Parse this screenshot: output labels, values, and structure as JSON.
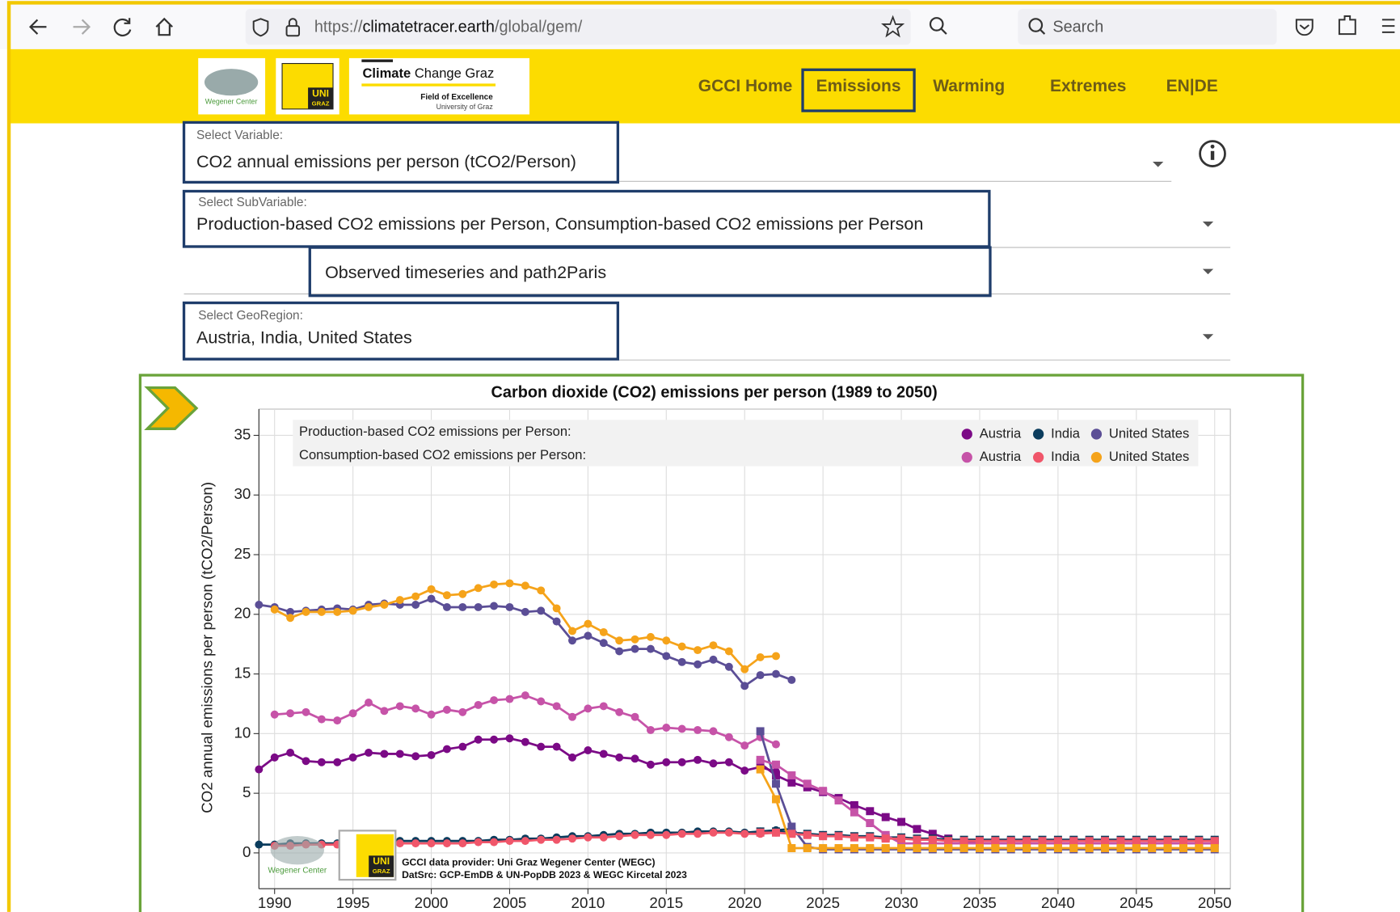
{
  "browser": {
    "url_scheme": "https://",
    "url_host": "climatetracer.earth",
    "url_path": "/global/gem/",
    "search": "Search"
  },
  "logos": {
    "wegener": "Wegener Center",
    "uni": "UNI",
    "graz": "GRAZ",
    "ccg_bold": "Climate",
    "ccg": "Change Graz",
    "foe": "Field of Excellence",
    "uog": "University of Graz"
  },
  "nav": [
    "GCCI Home",
    "Emissions",
    "Warming",
    "Extremes",
    "EN|DE"
  ],
  "selects": [
    {
      "label": "Select Variable:",
      "value": "CO2 annual emissions per person (tCO2/Person)"
    },
    {
      "label": "Select SubVariable:",
      "value": "Production-based CO2 emissions per Person, Consumption-based CO2 emissions per Person"
    },
    {
      "value": "Observed timeseries and path2Paris"
    },
    {
      "label": "Select GeoRegion:",
      "value": "Austria, India, United States"
    }
  ],
  "chart_data": {
    "type": "line",
    "title": "Carbon dioxide (CO2) emissions per person (1989 to 2050)",
    "y_label": "CO2 annual emissions per person (tCO2/Person)",
    "notes": [
      "GCCI data provider: Uni Graz Wegener Center (WEGC)",
      "DatSrc: GCP-EmDB & UN-PopDB 2023 & WEGC Kircetal 2023"
    ],
    "x": [
      1989,
      1990,
      1991,
      1992,
      1993,
      1994,
      1995,
      1996,
      1997,
      1998,
      1999,
      2000,
      2001,
      2002,
      2003,
      2004,
      2005,
      2006,
      2007,
      2008,
      2009,
      2010,
      2011,
      2012,
      2013,
      2014,
      2015,
      2016,
      2017,
      2018,
      2019,
      2020,
      2021,
      2022,
      2023
    ],
    "path_x": [
      2021,
      2022,
      2023,
      2024,
      2025,
      2026,
      2027,
      2028,
      2029,
      2030,
      2031,
      2032,
      2033,
      2034,
      2035,
      2036,
      2037,
      2038,
      2039,
      2040,
      2041,
      2042,
      2043,
      2044,
      2045,
      2046,
      2047,
      2048,
      2049,
      2050
    ],
    "xlim": [
      1989,
      2051
    ],
    "ylim": [
      -3,
      37.2
    ],
    "xticks": [
      1990,
      1995,
      2000,
      2005,
      2010,
      2015,
      2020,
      2025,
      2030,
      2035,
      2040,
      2045,
      2050
    ],
    "yticks": [
      0,
      5,
      10,
      15,
      20,
      25,
      30,
      35
    ],
    "grid": true,
    "groups": [
      {
        "title": "Production-based CO2 emissions per Person:",
        "series": [
          {
            "name": "Austria",
            "color": "#7b0a86",
            "values": [
              7.0,
              8.0,
              8.4,
              7.7,
              7.6,
              7.6,
              8.0,
              8.4,
              8.3,
              8.3,
              8.1,
              8.2,
              8.7,
              8.9,
              9.5,
              9.5,
              9.6,
              9.3,
              8.9,
              8.9,
              8.0,
              8.6,
              8.3,
              8.0,
              7.9,
              7.4,
              7.6,
              7.6,
              7.8,
              7.5,
              7.6,
              6.9,
              7.2,
              6.8,
              null
            ],
            "path": [
              7.5,
              6.5,
              5.9,
              5.5,
              5.1,
              4.6,
              4.0,
              3.5,
              3.0,
              2.6,
              2.0,
              1.6,
              1.2,
              0.9,
              1.0,
              1.0,
              1.0,
              1.0,
              1.0,
              1.0,
              1.0,
              1.0,
              1.0,
              1.0,
              1.0,
              1.0,
              1.0,
              1.0,
              1.0,
              1.0
            ]
          },
          {
            "name": "India",
            "color": "#0b3c5d",
            "values": [
              0.7,
              0.7,
              0.8,
              0.8,
              0.8,
              0.8,
              0.9,
              0.9,
              0.9,
              1.0,
              1.0,
              1.0,
              1.0,
              1.0,
              1.0,
              1.1,
              1.1,
              1.2,
              1.2,
              1.3,
              1.4,
              1.4,
              1.5,
              1.6,
              1.6,
              1.7,
              1.7,
              1.7,
              1.8,
              1.8,
              1.8,
              1.7,
              1.8,
              1.9,
              2.0
            ],
            "path": [
              1.8,
              1.8,
              1.7,
              1.6,
              1.5,
              1.5,
              1.4,
              1.4,
              1.3,
              1.3,
              1.2,
              1.2,
              1.1,
              1.1,
              1.1,
              1.1,
              1.1,
              1.1,
              1.1,
              1.1,
              1.1,
              1.1,
              1.1,
              1.1,
              1.1,
              1.1,
              1.1,
              1.1,
              1.1,
              1.1
            ]
          },
          {
            "name": "United States",
            "color": "#5b4e96",
            "values": [
              20.8,
              20.6,
              20.2,
              20.3,
              20.4,
              20.5,
              20.4,
              20.8,
              20.9,
              20.8,
              20.8,
              21.3,
              20.6,
              20.6,
              20.6,
              20.7,
              20.6,
              20.2,
              20.3,
              19.4,
              17.8,
              18.2,
              17.6,
              16.9,
              17.1,
              17.1,
              16.5,
              16.0,
              15.8,
              16.2,
              15.6,
              14.0,
              14.9,
              15.0,
              14.5
            ],
            "path": [
              10.2,
              5.8,
              2.2,
              0.5,
              0.3,
              0.3,
              0.3,
              0.3,
              0.3,
              0.3,
              0.3,
              0.3,
              0.3,
              0.3,
              0.3,
              0.3,
              0.3,
              0.3,
              0.3,
              0.3,
              0.3,
              0.3,
              0.3,
              0.3,
              0.3,
              0.3,
              0.3,
              0.3,
              0.3,
              0.3
            ]
          }
        ]
      },
      {
        "title": "Consumption-based CO2 emissions per Person:",
        "series": [
          {
            "name": "Austria",
            "color": "#c653a8",
            "values": [
              null,
              11.6,
              11.7,
              11.8,
              11.2,
              11.1,
              11.7,
              12.6,
              11.9,
              12.3,
              12.1,
              11.6,
              12.0,
              11.8,
              12.4,
              12.8,
              12.9,
              13.2,
              12.7,
              12.3,
              11.4,
              12.1,
              12.3,
              11.8,
              11.4,
              10.3,
              10.5,
              10.4,
              10.3,
              10.2,
              9.7,
              9.0,
              9.7,
              9.1,
              null
            ],
            "path": [
              7.8,
              7.4,
              6.5,
              5.8,
              5.2,
              4.4,
              3.4,
              2.5,
              1.5,
              0.8,
              0.8,
              0.8,
              0.8,
              0.8,
              0.8,
              0.8,
              0.8,
              0.8,
              0.8,
              0.8,
              0.8,
              0.8,
              0.8,
              0.8,
              0.8,
              0.8,
              0.8,
              0.8,
              0.8,
              0.8
            ]
          },
          {
            "name": "India",
            "color": "#f0566a",
            "values": [
              null,
              0.6,
              0.6,
              0.7,
              0.7,
              0.7,
              0.7,
              0.8,
              0.8,
              0.8,
              0.8,
              0.8,
              0.8,
              0.8,
              0.9,
              0.9,
              1.0,
              1.0,
              1.1,
              1.1,
              1.2,
              1.3,
              1.3,
              1.4,
              1.5,
              1.5,
              1.5,
              1.6,
              1.6,
              1.7,
              1.7,
              1.6,
              1.6,
              1.7,
              null
            ],
            "path": [
              1.7,
              1.7,
              1.6,
              1.5,
              1.4,
              1.4,
              1.3,
              1.3,
              1.2,
              1.2,
              1.1,
              1.1,
              1.0,
              1.0,
              1.0,
              1.0,
              1.0,
              1.0,
              1.0,
              1.0,
              1.0,
              1.0,
              1.0,
              1.0,
              1.0,
              1.0,
              1.0,
              1.0,
              1.0,
              1.0
            ]
          },
          {
            "name": "United States",
            "color": "#f5a31a",
            "values": [
              null,
              20.4,
              19.7,
              20.2,
              20.2,
              20.2,
              20.3,
              20.6,
              20.8,
              21.2,
              21.5,
              22.1,
              21.6,
              21.7,
              22.2,
              22.5,
              22.6,
              22.4,
              22.0,
              20.5,
              18.6,
              19.2,
              18.5,
              17.8,
              17.9,
              18.1,
              17.8,
              17.3,
              17.0,
              17.4,
              16.9,
              15.4,
              16.4,
              16.5,
              null
            ],
            "path": [
              7.0,
              4.5,
              0.4,
              0.4,
              0.4,
              0.4,
              0.4,
              0.4,
              0.4,
              0.4,
              0.4,
              0.4,
              0.4,
              0.4,
              0.4,
              0.4,
              0.4,
              0.4,
              0.4,
              0.4,
              0.4,
              0.4,
              0.4,
              0.4,
              0.4,
              0.4,
              0.4,
              0.4,
              0.4,
              0.4
            ]
          }
        ]
      }
    ]
  }
}
